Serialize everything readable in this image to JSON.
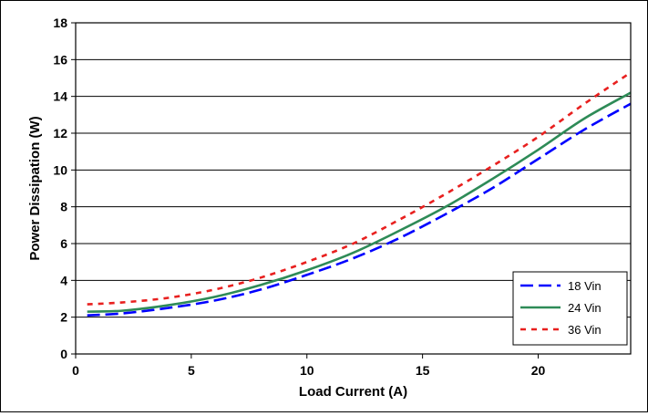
{
  "chart_data": {
    "type": "line",
    "title": "",
    "xlabel": "Load Current (A)",
    "ylabel": "Power Dissipation (W)",
    "xlim": [
      0,
      24
    ],
    "ylim": [
      0,
      18
    ],
    "x_ticks": [
      0,
      5,
      10,
      15,
      20
    ],
    "y_ticks": [
      0,
      2,
      4,
      6,
      8,
      10,
      12,
      14,
      16,
      18
    ],
    "grid": "horizontal",
    "legend_position": "bottom-right",
    "x": [
      0.5,
      2,
      4,
      6,
      8,
      10,
      12,
      14,
      16,
      18,
      20,
      22,
      24
    ],
    "series": [
      {
        "name": "18 Vin",
        "color": "#0000ff",
        "line_style": "dashed",
        "values": [
          2.1,
          2.2,
          2.5,
          2.9,
          3.5,
          4.3,
          5.2,
          6.3,
          7.6,
          9.0,
          10.6,
          12.2,
          13.6
        ]
      },
      {
        "name": "24 Vin",
        "color": "#2e8b57",
        "line_style": "solid",
        "values": [
          2.3,
          2.35,
          2.65,
          3.1,
          3.75,
          4.55,
          5.5,
          6.7,
          8.0,
          9.5,
          11.1,
          12.8,
          14.2
        ]
      },
      {
        "name": "36 Vin",
        "color": "#e8201f",
        "line_style": "dotted",
        "values": [
          2.7,
          2.8,
          3.05,
          3.5,
          4.15,
          5.0,
          6.0,
          7.3,
          8.7,
          10.2,
          11.8,
          13.6,
          15.3
        ]
      }
    ]
  }
}
